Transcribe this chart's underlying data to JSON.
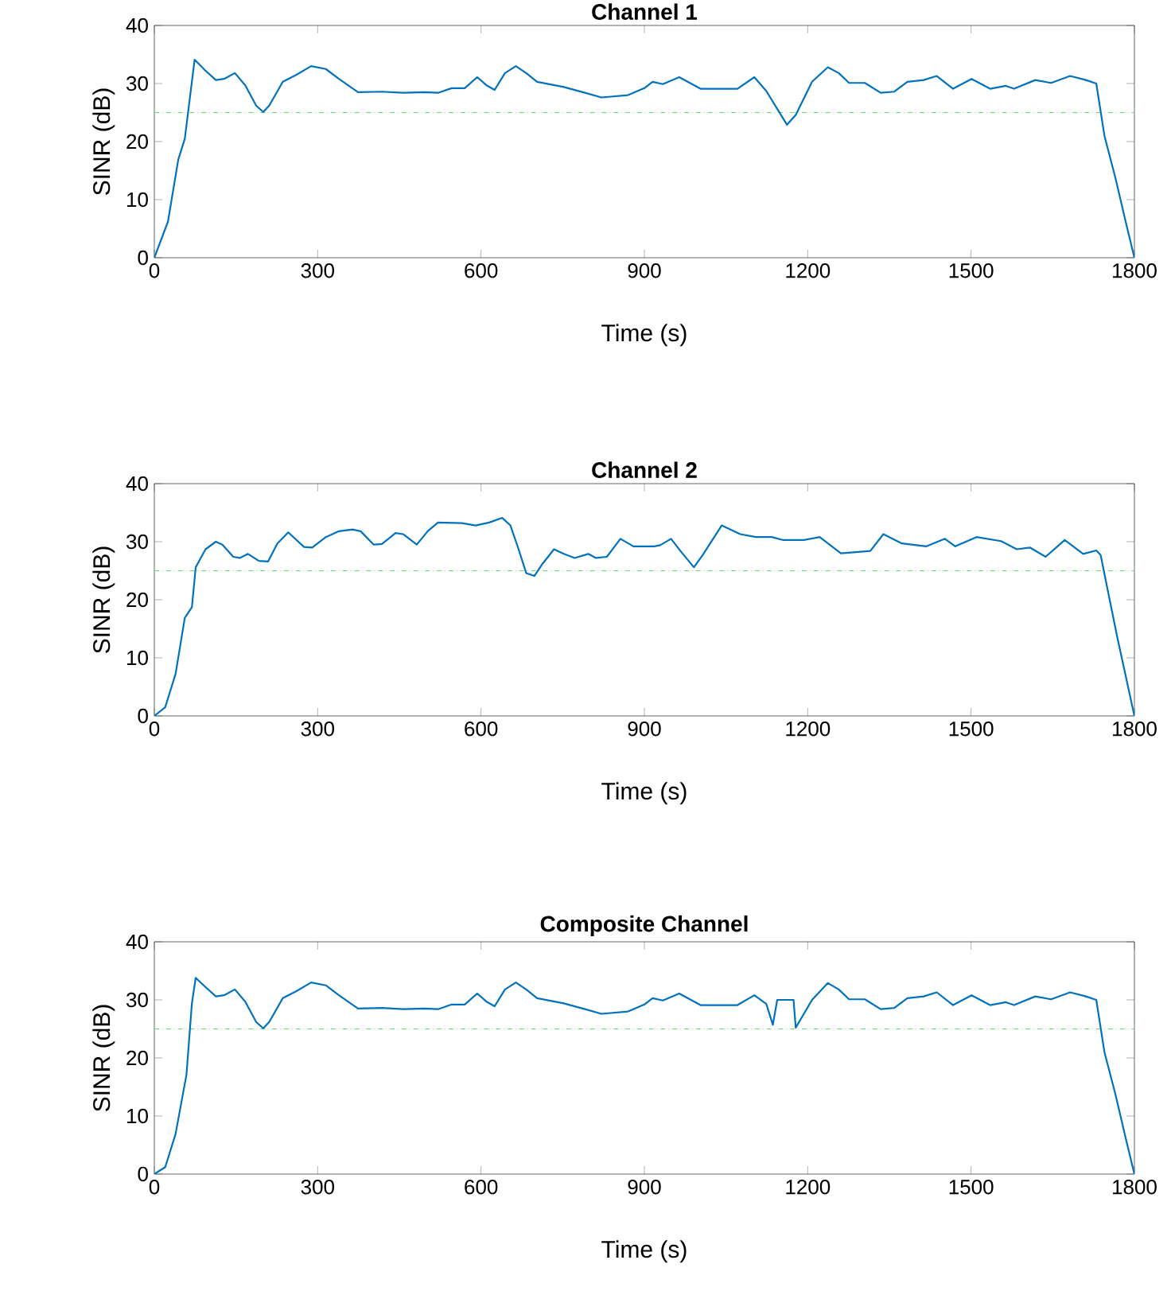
{
  "chart_data": [
    {
      "type": "line",
      "title": "Channel 1",
      "xlabel": "Time (s)",
      "ylabel": "SINR (dB)",
      "xlim": [
        0,
        1800
      ],
      "ylim": [
        0,
        40
      ],
      "xticks": [
        0,
        300,
        600,
        900,
        1200,
        1500,
        1800
      ],
      "yticks": [
        0,
        10,
        20,
        30,
        40
      ],
      "grid": false,
      "ref_lines": [
        {
          "axis": "y",
          "value": 25,
          "color": "#66dd66",
          "line_style": "dashdot"
        }
      ],
      "series": [
        {
          "color": "#0072bd",
          "x": [
            0,
            25,
            44,
            56,
            74,
            93,
            113,
            128,
            148,
            167,
            187,
            200,
            211,
            236,
            261,
            288,
            315,
            339,
            374,
            418,
            457,
            496,
            521,
            546,
            570,
            593,
            610,
            625,
            644,
            664,
            683,
            703,
            752,
            791,
            821,
            870,
            900,
            915,
            934,
            964,
            1003,
            1071,
            1102,
            1124,
            1162,
            1178,
            1208,
            1237,
            1257,
            1276,
            1305,
            1334,
            1359,
            1383,
            1413,
            1437,
            1467,
            1501,
            1535,
            1564,
            1579,
            1618,
            1647,
            1682,
            1711,
            1730,
            1745,
            1765,
            1784,
            1800
          ],
          "values": [
            0,
            6.2,
            16.9,
            20.5,
            34.1,
            32.3,
            30.6,
            30.8,
            31.8,
            29.7,
            26.2,
            25.1,
            26.2,
            30.3,
            31.5,
            33.0,
            32.5,
            30.8,
            28.5,
            28.6,
            28.4,
            28.5,
            28.4,
            29.2,
            29.2,
            31.1,
            29.7,
            28.9,
            31.8,
            33.0,
            31.8,
            30.3,
            29.4,
            28.4,
            27.6,
            28.0,
            29.2,
            30.3,
            29.9,
            31.1,
            29.1,
            29.1,
            31.1,
            28.7,
            22.9,
            24.6,
            30.3,
            32.8,
            31.8,
            30.1,
            30.1,
            28.4,
            28.6,
            30.3,
            30.6,
            31.3,
            29.1,
            30.8,
            29.1,
            29.6,
            29.1,
            30.6,
            30.1,
            31.3,
            30.6,
            30.0,
            21.0,
            13.8,
            6.2,
            0
          ]
        }
      ]
    },
    {
      "type": "line",
      "title": "Channel 2",
      "xlabel": "Time (s)",
      "ylabel": "SINR (dB)",
      "xlim": [
        0,
        1800
      ],
      "ylim": [
        0,
        40
      ],
      "xticks": [
        0,
        300,
        600,
        900,
        1200,
        1500,
        1800
      ],
      "yticks": [
        0,
        10,
        20,
        30,
        40
      ],
      "grid": false,
      "ref_lines": [
        {
          "axis": "y",
          "value": 25,
          "color": "#66dd66",
          "line_style": "dashdot"
        }
      ],
      "series": [
        {
          "color": "#0072bd",
          "x": [
            0,
            20,
            39,
            56,
            69,
            76,
            94,
            113,
            125,
            145,
            157,
            172,
            192,
            209,
            226,
            246,
            275,
            290,
            315,
            339,
            364,
            379,
            403,
            418,
            443,
            457,
            482,
            502,
            521,
            565,
            590,
            615,
            639,
            654,
            669,
            683,
            698,
            713,
            734,
            752,
            772,
            797,
            811,
            831,
            856,
            880,
            918,
            929,
            949,
            968,
            991,
            1007,
            1042,
            1076,
            1105,
            1134,
            1154,
            1193,
            1222,
            1261,
            1315,
            1339,
            1373,
            1418,
            1452,
            1471,
            1510,
            1555,
            1584,
            1608,
            1637,
            1672,
            1706,
            1730,
            1738,
            1768,
            1800
          ],
          "values": [
            0,
            1.5,
            7.2,
            16.9,
            18.7,
            25.6,
            28.7,
            30.0,
            29.5,
            27.4,
            27.2,
            27.9,
            26.7,
            26.6,
            29.7,
            31.6,
            29.1,
            29.0,
            30.8,
            31.8,
            32.1,
            31.8,
            29.5,
            29.6,
            31.5,
            31.3,
            29.5,
            31.8,
            33.3,
            33.2,
            32.8,
            33.3,
            34.1,
            32.8,
            28.7,
            24.6,
            24.1,
            26.2,
            28.7,
            27.9,
            27.2,
            27.9,
            27.2,
            27.4,
            30.5,
            29.2,
            29.2,
            29.4,
            30.5,
            28.2,
            25.6,
            27.7,
            32.8,
            31.3,
            30.8,
            30.8,
            30.3,
            30.3,
            30.8,
            28.0,
            28.4,
            31.3,
            29.7,
            29.2,
            30.5,
            29.2,
            30.8,
            30.1,
            28.7,
            29.0,
            27.4,
            30.3,
            27.9,
            28.5,
            27.7,
            13.8,
            0
          ]
        }
      ]
    },
    {
      "type": "line",
      "title": "Composite Channel",
      "xlabel": "Time (s)",
      "ylabel": "SINR (dB)",
      "xlim": [
        0,
        1800
      ],
      "ylim": [
        0,
        40
      ],
      "xticks": [
        0,
        300,
        600,
        900,
        1200,
        1500,
        1800
      ],
      "yticks": [
        0,
        10,
        20,
        30,
        40
      ],
      "grid": false,
      "ref_lines": [
        {
          "axis": "y",
          "value": 25,
          "color": "#66dd66",
          "line_style": "dashdot"
        }
      ],
      "series": [
        {
          "color": "#0072bd",
          "x": [
            0,
            20,
            39,
            59,
            69,
            76,
            93,
            113,
            128,
            148,
            167,
            187,
            200,
            211,
            236,
            261,
            288,
            315,
            339,
            374,
            418,
            457,
            496,
            521,
            546,
            570,
            593,
            610,
            625,
            644,
            664,
            683,
            703,
            752,
            791,
            821,
            870,
            900,
            915,
            934,
            964,
            1003,
            1071,
            1102,
            1124,
            1136,
            1144,
            1174,
            1178,
            1208,
            1237,
            1257,
            1276,
            1305,
            1334,
            1359,
            1383,
            1413,
            1437,
            1467,
            1501,
            1535,
            1564,
            1579,
            1618,
            1647,
            1682,
            1711,
            1730,
            1745,
            1765,
            1784,
            1800
          ],
          "values": [
            0,
            1.2,
            6.9,
            17.1,
            29.4,
            33.8,
            32.3,
            30.6,
            30.8,
            31.8,
            29.7,
            26.2,
            25.1,
            26.2,
            30.3,
            31.5,
            33.0,
            32.5,
            30.8,
            28.5,
            28.6,
            28.4,
            28.5,
            28.4,
            29.2,
            29.2,
            31.1,
            29.7,
            28.9,
            31.8,
            33.0,
            31.8,
            30.3,
            29.4,
            28.4,
            27.6,
            28.0,
            29.2,
            30.3,
            29.9,
            31.1,
            29.1,
            29.1,
            30.8,
            29.3,
            25.7,
            30.0,
            30.0,
            25.2,
            30.0,
            32.9,
            31.8,
            30.1,
            30.1,
            28.4,
            28.6,
            30.3,
            30.6,
            31.3,
            29.1,
            30.8,
            29.1,
            29.6,
            29.1,
            30.6,
            30.1,
            31.3,
            30.6,
            30.0,
            21.0,
            13.8,
            6.2,
            0
          ]
        }
      ]
    }
  ]
}
